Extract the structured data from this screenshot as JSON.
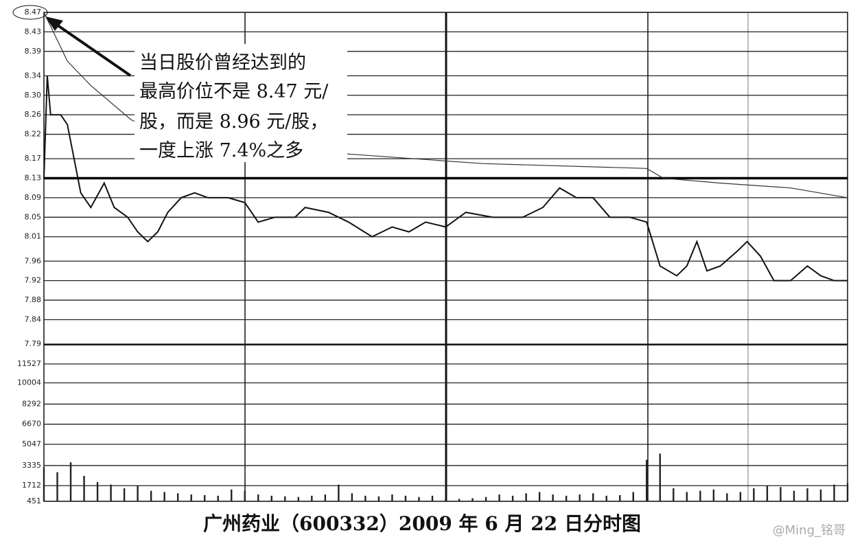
{
  "chart_data": [
    {
      "type": "line",
      "xlim": [
        0,
        240
      ],
      "ylim": [
        7.79,
        8.47
      ],
      "yticks": [
        8.47,
        8.43,
        8.39,
        8.34,
        {
          "value": 8.3,
          "label": "8.30"
        },
        8.26,
        8.22,
        8.17,
        8.13,
        8.09,
        8.05,
        8.01,
        7.96,
        7.92,
        7.88,
        7.84,
        7.79
      ],
      "baseline": 8.13,
      "grid": true,
      "series": [
        {
          "color": "#111",
          "x": [
            0,
            1,
            2,
            5,
            7,
            9,
            11,
            14,
            18,
            21,
            25,
            28,
            31,
            34,
            37,
            41,
            45,
            49,
            55,
            60,
            64,
            69,
            75,
            78,
            85,
            91,
            98,
            104,
            109,
            114,
            120,
            126,
            134,
            143,
            149,
            154,
            159,
            164,
            169,
            175,
            180,
            184,
            189,
            192,
            195,
            198,
            202,
            207,
            210,
            214,
            218,
            223,
            228,
            232,
            236,
            240
          ],
          "values": [
            8.13,
            8.34,
            8.26,
            8.26,
            8.24,
            8.17,
            8.1,
            8.07,
            8.12,
            8.07,
            8.05,
            8.02,
            8.0,
            8.02,
            8.06,
            8.09,
            8.1,
            8.09,
            8.09,
            8.08,
            8.04,
            8.05,
            8.05,
            8.07,
            8.06,
            8.04,
            8.01,
            8.03,
            8.02,
            8.04,
            8.03,
            8.06,
            8.05,
            8.05,
            8.07,
            8.11,
            8.09,
            8.09,
            8.05,
            8.05,
            8.04,
            7.95,
            7.93,
            7.95,
            8.0,
            7.94,
            7.95,
            7.98,
            8.0,
            7.97,
            7.92,
            7.92,
            7.95,
            7.93,
            7.92,
            7.92
          ]
        },
        {
          "color": "#333",
          "x": [
            0,
            7,
            14,
            26,
            38,
            90,
            131,
            180,
            185,
            202,
            223,
            240
          ],
          "values": [
            8.47,
            8.37,
            8.32,
            8.25,
            8.21,
            8.18,
            8.16,
            8.15,
            8.13,
            8.12,
            8.11,
            8.09
          ]
        }
      ],
      "annotation": [
        "当日股价曾经达到的",
        "最高价位不是 8.47 元/",
        "股，而是 8.96 元/股，",
        "一度上涨 7.4%之多"
      ]
    },
    {
      "type": "bar",
      "color": "#222",
      "xlim": [
        0,
        240
      ],
      "ylim": [
        451,
        13078
      ],
      "yticks": [
        11527,
        10004,
        8292,
        6670,
        5047,
        3335,
        1712,
        451
      ],
      "x": [
        0,
        4,
        8,
        12,
        16,
        20,
        24,
        28,
        32,
        36,
        40,
        44,
        48,
        52,
        56,
        60,
        64,
        68,
        72,
        76,
        80,
        84,
        88,
        92,
        96,
        100,
        104,
        108,
        112,
        116,
        120,
        124,
        128,
        132,
        136,
        140,
        144,
        148,
        152,
        156,
        160,
        164,
        168,
        172,
        176,
        180,
        184,
        188,
        192,
        196,
        200,
        204,
        208,
        212,
        216,
        220,
        224,
        228,
        232,
        236,
        240
      ],
      "values": [
        3200,
        2800,
        3600,
        2500,
        2000,
        1800,
        1500,
        1700,
        1300,
        1200,
        1100,
        1000,
        950,
        900,
        1400,
        1300,
        1000,
        900,
        850,
        800,
        900,
        1000,
        1800,
        1100,
        900,
        850,
        1000,
        900,
        800,
        900,
        700,
        650,
        700,
        800,
        1000,
        900,
        1100,
        1200,
        1000,
        900,
        1000,
        1100,
        900,
        950,
        1200,
        3800,
        4300,
        1500,
        1200,
        1300,
        1400,
        1100,
        1200,
        1500,
        1700,
        1600,
        1300,
        1500,
        1400,
        1800,
        1900
      ]
    }
  ],
  "caption": "广州药业（600332）2009 年 6 月 22 日分时图",
  "watermark": "@Ming_铭哥"
}
